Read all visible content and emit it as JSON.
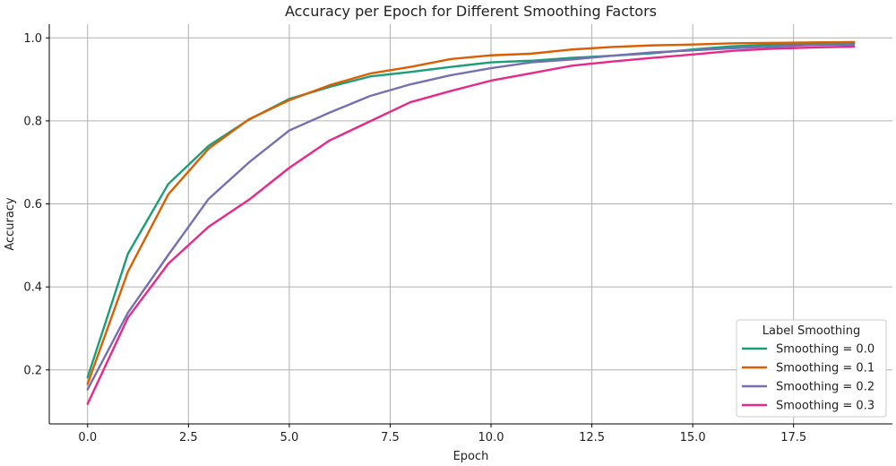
{
  "chart_data": {
    "type": "line",
    "title": "Accuracy per Epoch for Different Smoothing Factors",
    "xlabel": "Epoch",
    "ylabel": "Accuracy",
    "xlim": [
      -0.95,
      19.95
    ],
    "ylim": [
      0.07,
      1.033
    ],
    "xticks": [
      0.0,
      2.5,
      5.0,
      7.5,
      10.0,
      12.5,
      15.0,
      17.5
    ],
    "xtick_labels": [
      "0.0",
      "2.5",
      "5.0",
      "7.5",
      "10.0",
      "12.5",
      "15.0",
      "17.5"
    ],
    "yticks": [
      0.2,
      0.4,
      0.6,
      0.8,
      1.0
    ],
    "ytick_labels": [
      "0.2",
      "0.4",
      "0.6",
      "0.8",
      "1.0"
    ],
    "grid": true,
    "legend": {
      "title": "Label Smoothing",
      "placement": "lower-right"
    },
    "x": [
      0,
      1,
      2,
      3,
      4,
      5,
      6,
      7,
      8,
      9,
      10,
      11,
      12,
      13,
      14,
      15,
      16,
      17,
      18,
      19
    ],
    "series": [
      {
        "name": "Smoothing = 0.0",
        "color": "#1b9e77",
        "values": [
          0.182,
          0.48,
          0.648,
          0.74,
          0.803,
          0.853,
          0.882,
          0.907,
          0.918,
          0.93,
          0.941,
          0.945,
          0.952,
          0.957,
          0.963,
          0.972,
          0.98,
          0.984,
          0.986,
          0.988
        ]
      },
      {
        "name": "Smoothing = 0.1",
        "color": "#d95f02",
        "values": [
          0.166,
          0.437,
          0.623,
          0.733,
          0.804,
          0.85,
          0.886,
          0.914,
          0.93,
          0.949,
          0.958,
          0.962,
          0.972,
          0.978,
          0.982,
          0.984,
          0.987,
          0.988,
          0.989,
          0.99
        ]
      },
      {
        "name": "Smoothing = 0.2",
        "color": "#7570b3",
        "values": [
          0.153,
          0.338,
          0.477,
          0.612,
          0.7,
          0.777,
          0.82,
          0.86,
          0.888,
          0.91,
          0.927,
          0.941,
          0.948,
          0.957,
          0.965,
          0.97,
          0.975,
          0.979,
          0.983,
          0.984
        ]
      },
      {
        "name": "Smoothing = 0.3",
        "color": "#e7298a",
        "values": [
          0.118,
          0.326,
          0.456,
          0.545,
          0.61,
          0.687,
          0.753,
          0.799,
          0.845,
          0.872,
          0.897,
          0.915,
          0.933,
          0.943,
          0.952,
          0.96,
          0.969,
          0.974,
          0.977,
          0.979
        ]
      }
    ]
  }
}
